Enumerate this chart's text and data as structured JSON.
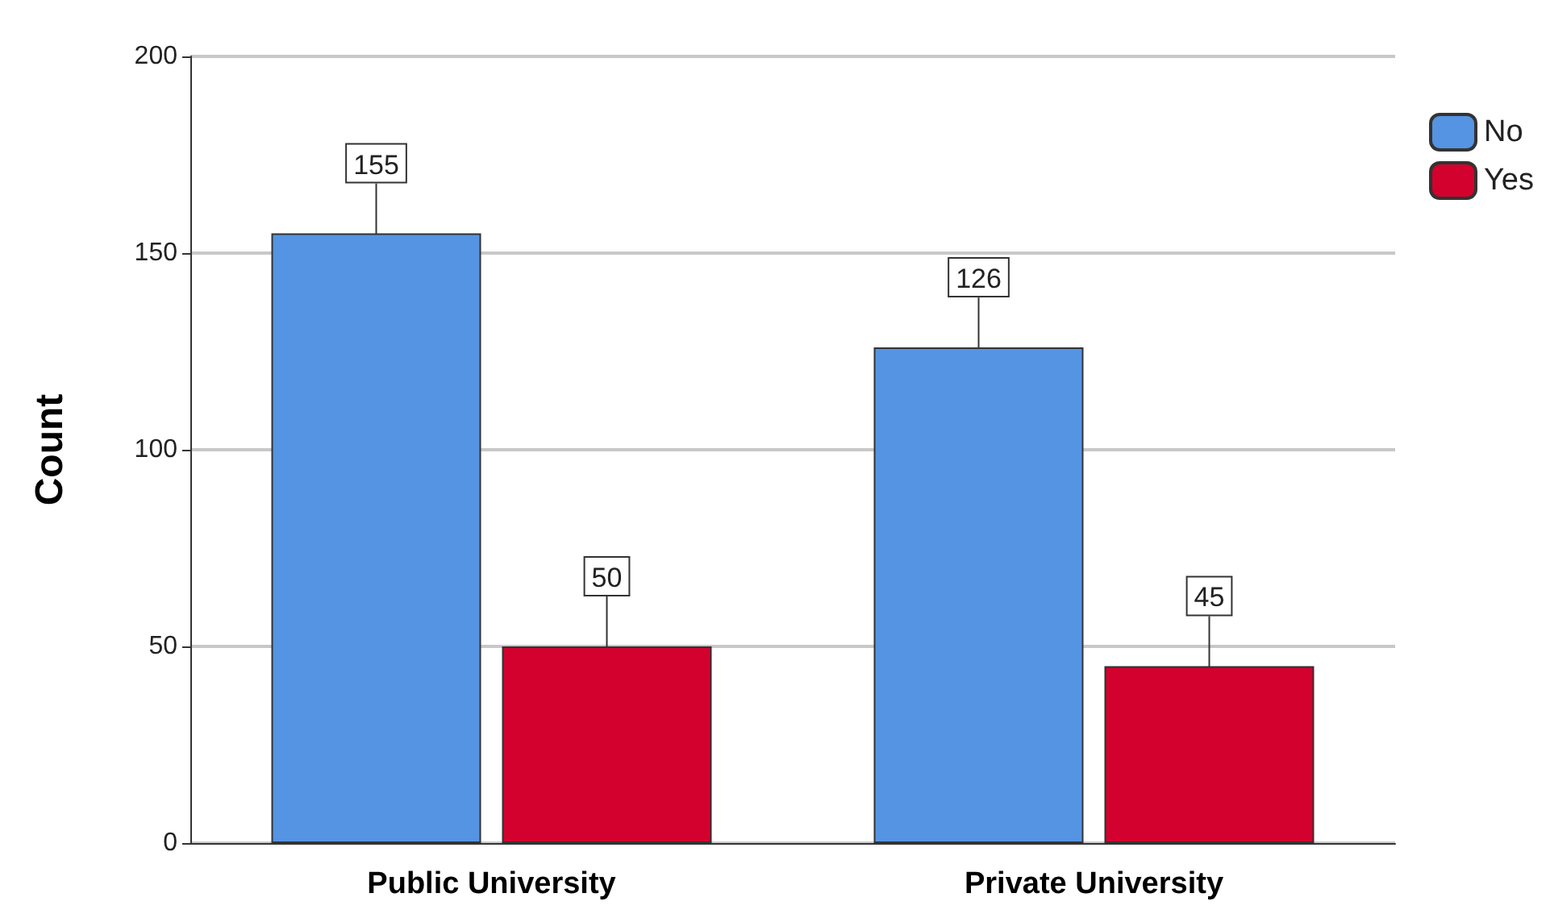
{
  "chart_data": {
    "type": "bar",
    "ylabel": "Count",
    "categories": [
      "Public University",
      "Private University"
    ],
    "series": [
      {
        "name": "No",
        "color": "#5594e3",
        "values": [
          155,
          126
        ]
      },
      {
        "name": "Yes",
        "color": "#d3012d",
        "values": [
          50,
          45
        ]
      }
    ],
    "ylim": [
      0,
      200
    ],
    "yticks": [
      0,
      50,
      100,
      150,
      200
    ],
    "grid": "y",
    "legend": "right",
    "data_labels": true
  }
}
